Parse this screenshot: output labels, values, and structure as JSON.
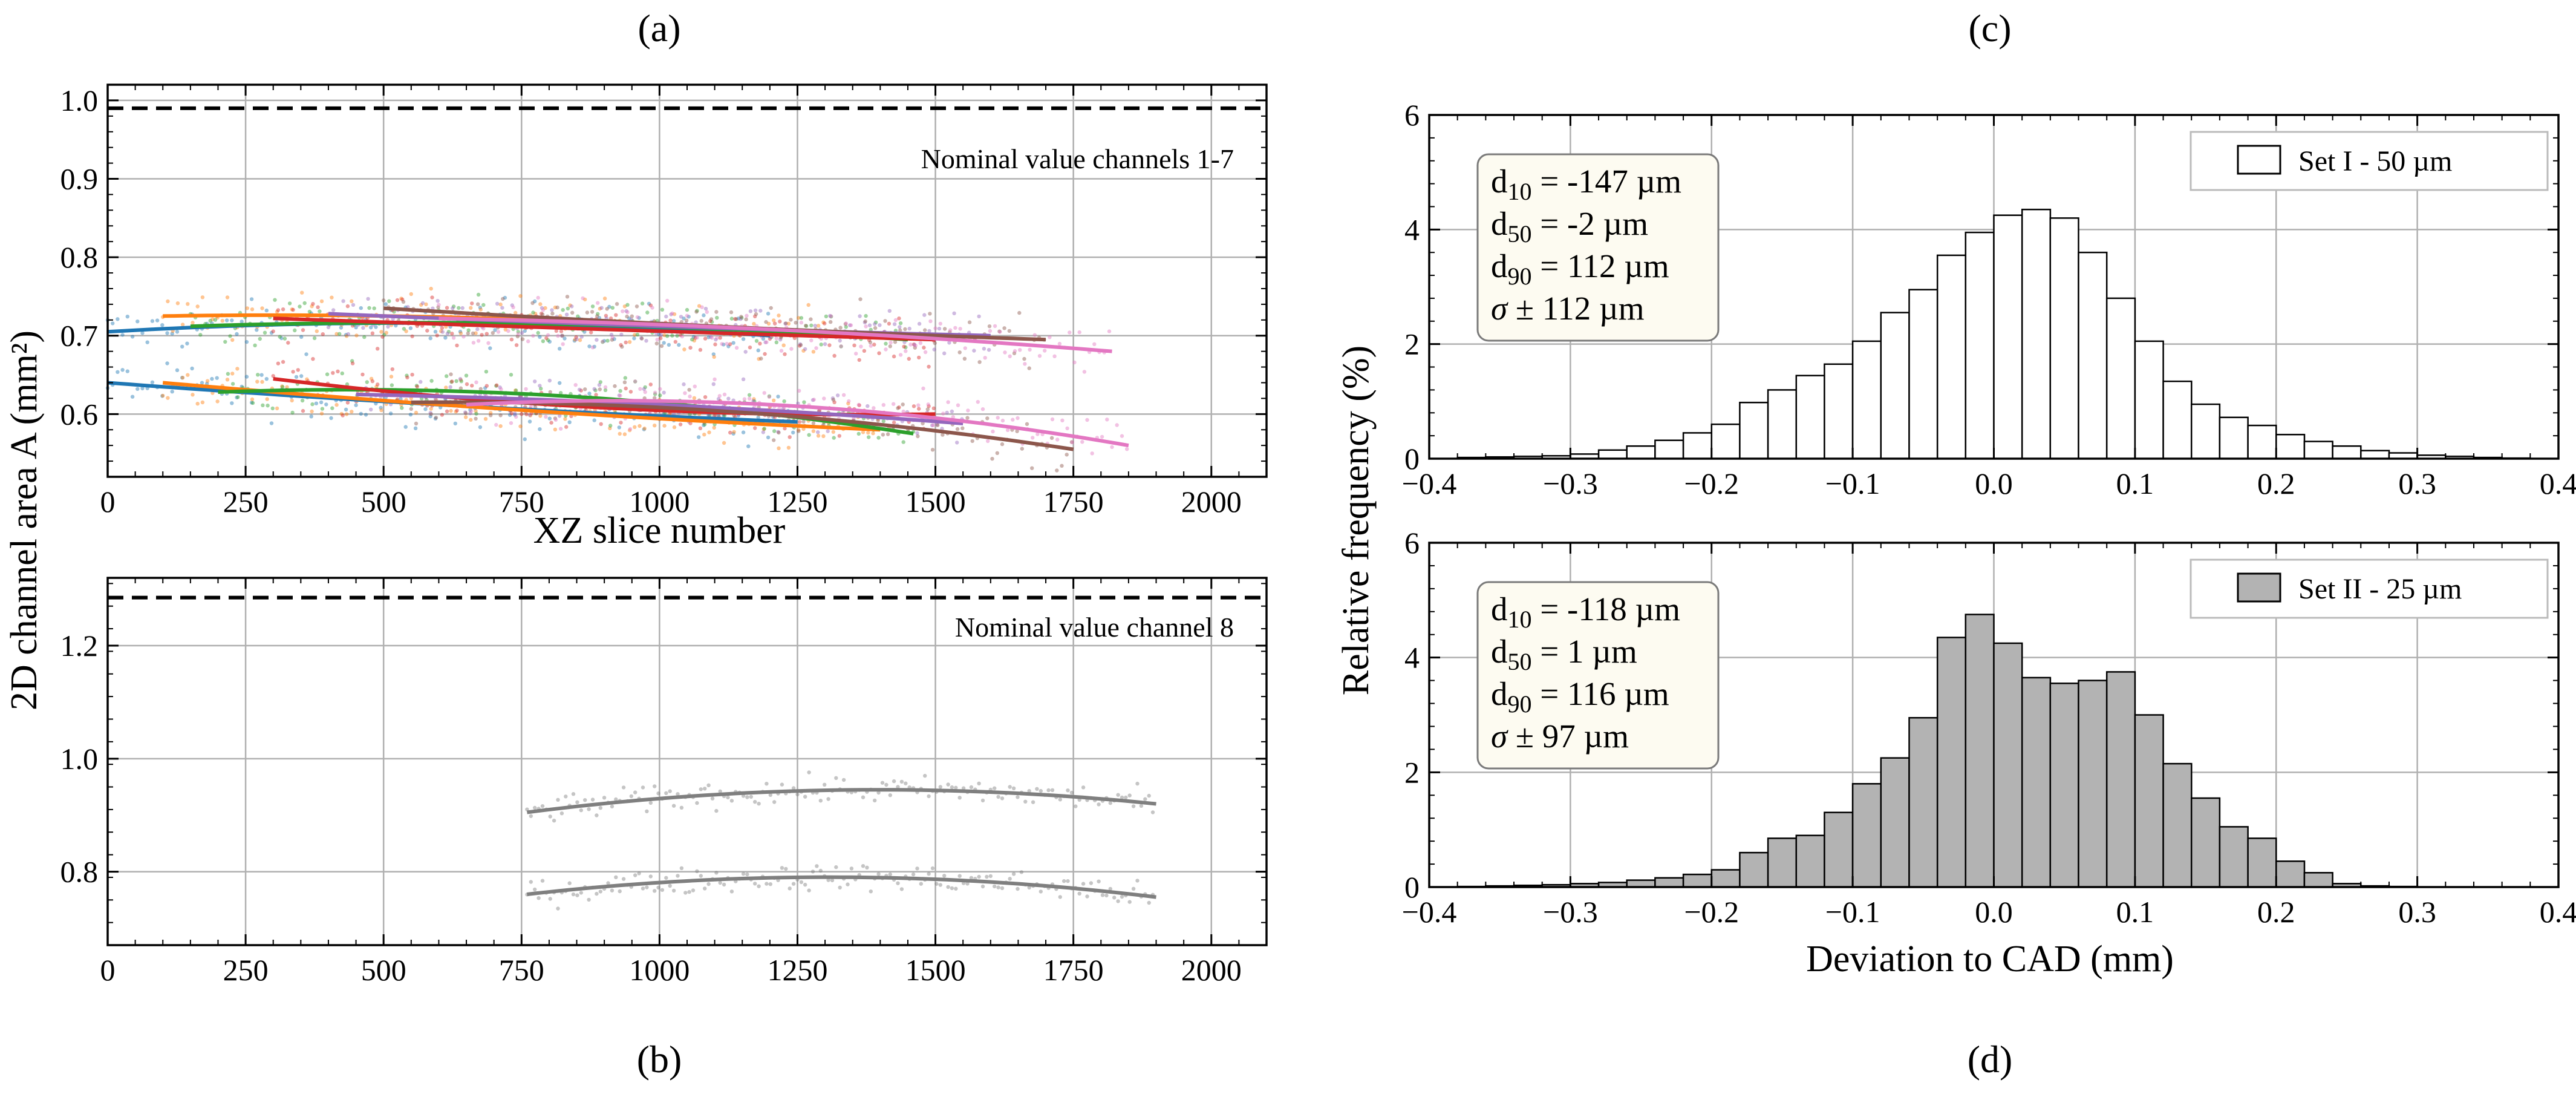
{
  "panels": {
    "a": "(a)",
    "b": "(b)",
    "c": "(c)",
    "d": "(d)"
  },
  "colors": {
    "nominal_line": "#000000",
    "hist_I_fill": "#ffffff",
    "hist_II_fill": "#b3b3b3",
    "grid": "#b0b0b0",
    "stats_bg": "#fdfbf1",
    "series": [
      "#1f77b4",
      "#ff7f0e",
      "#2ca02c",
      "#d62728",
      "#9467bd",
      "#8c564b",
      "#e377c2",
      "#7f7f7f"
    ]
  },
  "shared_labels": {
    "y_area": "2D channel area A (mm²)",
    "y_freq": "Relative frequency (%)"
  },
  "chart_data": [
    {
      "id": "a",
      "type": "scatter",
      "xlabel": "XZ slice number",
      "ylabel": "2D channel area A (mm²)",
      "xlim": [
        0,
        2100
      ],
      "ylim": [
        0.52,
        1.02
      ],
      "xticks": [
        0,
        250,
        500,
        750,
        1000,
        1250,
        1500,
        1750,
        2000
      ],
      "yticks": [
        0.6,
        0.7,
        0.8,
        0.9,
        1.0
      ],
      "ytick_labels": [
        "0.6",
        "0.7",
        "0.8",
        "0.9",
        "1.0"
      ],
      "grid": true,
      "nominal": {
        "value": 0.99,
        "label": "Nominal value channels 1-7"
      },
      "series": [
        {
          "channel": 1,
          "color": "#1f77b4",
          "upper": {
            "x": [
              0,
              600,
              1200
            ],
            "y": [
              0.705,
              0.716,
              0.7
            ]
          },
          "lower": {
            "x": [
              0,
              600,
              1250
            ],
            "y": [
              0.64,
              0.612,
              0.59
            ]
          }
        },
        {
          "channel": 2,
          "color": "#ff7f0e",
          "upper": {
            "x": [
              100,
              700,
              1300
            ],
            "y": [
              0.725,
              0.722,
              0.7
            ]
          },
          "lower": {
            "x": [
              100,
              750,
              1400
            ],
            "y": [
              0.64,
              0.605,
              0.58
            ]
          }
        },
        {
          "channel": 3,
          "color": "#2ca02c",
          "upper": {
            "x": [
              150,
              800,
              1450
            ],
            "y": [
              0.712,
              0.715,
              0.695
            ]
          },
          "lower": {
            "x": [
              200,
              850,
              1460
            ],
            "y": [
              0.628,
              0.622,
              0.575
            ]
          }
        },
        {
          "channel": 4,
          "color": "#d62728",
          "upper": {
            "x": [
              300,
              900,
              1500
            ],
            "y": [
              0.722,
              0.708,
              0.695
            ]
          },
          "lower": {
            "x": [
              300,
              900,
              1500
            ],
            "y": [
              0.645,
              0.608,
              0.6
            ]
          }
        },
        {
          "channel": 5,
          "color": "#9467bd",
          "upper": {
            "x": [
              400,
              1000,
              1600
            ],
            "y": [
              0.728,
              0.712,
              0.7
            ]
          },
          "lower": {
            "x": [
              450,
              1000,
              1550
            ],
            "y": [
              0.625,
              0.612,
              0.588
            ]
          }
        },
        {
          "channel": 6,
          "color": "#8c564b",
          "upper": {
            "x": [
              500,
              1100,
              1700
            ],
            "y": [
              0.735,
              0.712,
              0.695
            ]
          },
          "lower": {
            "x": [
              550,
              1150,
              1750
            ],
            "y": [
              0.615,
              0.602,
              0.555
            ]
          }
        },
        {
          "channel": 7,
          "color": "#e377c2",
          "upper": {
            "x": [
              600,
              1200,
              1820
            ],
            "y": [
              0.722,
              0.708,
              0.68
            ]
          },
          "lower": {
            "x": [
              650,
              1250,
              1850
            ],
            "y": [
              0.612,
              0.61,
              0.56
            ]
          }
        }
      ]
    },
    {
      "id": "b",
      "type": "scatter",
      "xlabel": "",
      "ylabel": "2D channel area A (mm²)",
      "xlim": [
        0,
        2100
      ],
      "ylim": [
        0.67,
        1.32
      ],
      "xticks": [
        0,
        250,
        500,
        750,
        1000,
        1250,
        1500,
        1750,
        2000
      ],
      "yticks": [
        0.8,
        1.0,
        1.2
      ],
      "ytick_labels": [
        "0.8",
        "1.0",
        "1.2"
      ],
      "grid": true,
      "nominal": {
        "value": 1.285,
        "label": "Nominal value channel 8"
      },
      "series": [
        {
          "channel": 8,
          "color": "#7f7f7f",
          "upper": {
            "x": [
              760,
              1400,
              1900
            ],
            "y": [
              0.905,
              0.945,
              0.92
            ]
          },
          "lower": {
            "x": [
              760,
              1250,
              1900
            ],
            "y": [
              0.76,
              0.79,
              0.755
            ]
          }
        }
      ]
    },
    {
      "id": "c",
      "type": "bar",
      "xlabel": "",
      "ylabel": "Relative frequency (%)",
      "xlim": [
        -0.4,
        0.4
      ],
      "ylim": [
        0,
        6
      ],
      "xticks": [
        -0.4,
        -0.3,
        -0.2,
        -0.1,
        0.0,
        0.1,
        0.2,
        0.3,
        0.4
      ],
      "xtick_labels": [
        "−0.4",
        "−0.3",
        "−0.2",
        "−0.1",
        "0.0",
        "0.1",
        "0.2",
        "0.3",
        "0.4"
      ],
      "yticks": [
        0,
        2,
        4,
        6
      ],
      "ytick_labels": [
        "0",
        "2",
        "4",
        "6"
      ],
      "grid": true,
      "bin_start": -0.38,
      "bin_width": 0.02,
      "values": [
        0.02,
        0.03,
        0.04,
        0.05,
        0.08,
        0.15,
        0.22,
        0.32,
        0.45,
        0.6,
        0.98,
        1.2,
        1.45,
        1.65,
        2.05,
        2.55,
        2.95,
        3.55,
        3.95,
        4.25,
        4.35,
        4.2,
        3.6,
        2.8,
        2.05,
        1.35,
        0.95,
        0.72,
        0.58,
        0.42,
        0.3,
        0.22,
        0.14,
        0.1,
        0.06,
        0.04,
        0.02,
        0.01
      ],
      "legend": {
        "label": "Set I - 50 µm",
        "position": "top-right"
      },
      "stats": [
        "d10 = -147 µm",
        "d50 = -2 µm",
        "d90 = 112 µm",
        "σ ± 112 µm"
      ]
    },
    {
      "id": "d",
      "type": "bar",
      "xlabel": "Deviation to CAD (mm)",
      "ylabel": "Relative frequency (%)",
      "xlim": [
        -0.4,
        0.4
      ],
      "ylim": [
        0,
        6
      ],
      "xticks": [
        -0.4,
        -0.3,
        -0.2,
        -0.1,
        0.0,
        0.1,
        0.2,
        0.3,
        0.4
      ],
      "xtick_labels": [
        "−0.4",
        "−0.3",
        "−0.2",
        "−0.1",
        "0.0",
        "0.1",
        "0.2",
        "0.3",
        "0.4"
      ],
      "yticks": [
        0,
        2,
        4,
        6
      ],
      "ytick_labels": [
        "0",
        "2",
        "4",
        "6"
      ],
      "grid": true,
      "bin_start": -0.38,
      "bin_width": 0.02,
      "values": [
        0.01,
        0.02,
        0.03,
        0.04,
        0.06,
        0.08,
        0.12,
        0.16,
        0.22,
        0.3,
        0.6,
        0.85,
        0.9,
        1.3,
        1.8,
        2.25,
        2.95,
        4.35,
        4.75,
        4.25,
        3.65,
        3.55,
        3.6,
        3.75,
        3.0,
        2.15,
        1.55,
        1.05,
        0.85,
        0.45,
        0.25,
        0.06,
        0.02,
        0.01
      ],
      "legend": {
        "label": "Set II - 25 µm",
        "position": "top-right"
      },
      "stats": [
        "d10 = -118 µm",
        "d50 = 1 µm",
        "d90 = 116 µm",
        "σ ± 97 µm"
      ]
    }
  ]
}
